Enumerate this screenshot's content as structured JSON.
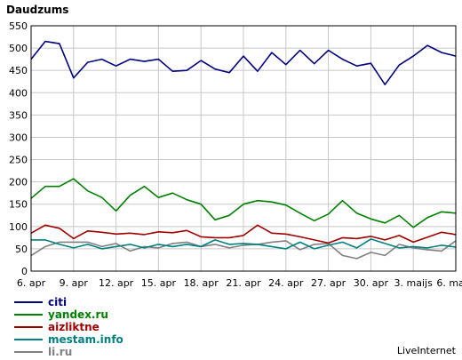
{
  "chart_data": {
    "type": "line",
    "title": "Daudzums",
    "credit": "LiveInternet",
    "ylim": [
      0,
      550
    ],
    "yticks": [
      0,
      50,
      100,
      150,
      200,
      250,
      300,
      350,
      400,
      450,
      500,
      550
    ],
    "grid": true,
    "legend_position": "bottom-left",
    "x_tick_labels": [
      "6. apr",
      "9. apr",
      "12. apr",
      "15. apr",
      "18. apr",
      "21. apr",
      "24. apr",
      "27. apr",
      "30. apr",
      "3. maijs",
      "6. maijs"
    ],
    "x_tick_index": [
      0,
      3,
      6,
      9,
      12,
      15,
      18,
      21,
      24,
      27,
      30
    ],
    "series": [
      {
        "name": "citi",
        "color": "#000080",
        "values": [
          475,
          515,
          510,
          433,
          468,
          475,
          460,
          475,
          470,
          475,
          448,
          450,
          472,
          453,
          445,
          482,
          448,
          490,
          463,
          495,
          465,
          495,
          475,
          460,
          466,
          418,
          462,
          482,
          506,
          490,
          482
        ]
      },
      {
        "name": "yandex.ru",
        "color": "#008000",
        "values": [
          163,
          190,
          190,
          207,
          180,
          165,
          135,
          170,
          190,
          165,
          175,
          160,
          150,
          115,
          125,
          150,
          158,
          155,
          148,
          130,
          113,
          128,
          158,
          130,
          117,
          108,
          125,
          98,
          120,
          133,
          130
        ]
      },
      {
        "name": "aizliktne",
        "color": "#a00000",
        "values": [
          85,
          103,
          96,
          73,
          90,
          87,
          83,
          85,
          82,
          88,
          86,
          91,
          77,
          75,
          75,
          80,
          103,
          85,
          83,
          77,
          70,
          63,
          75,
          73,
          78,
          70,
          80,
          65,
          76,
          87,
          82
        ]
      },
      {
        "name": "mestam.info",
        "color": "#008080",
        "values": [
          70,
          70,
          60,
          52,
          60,
          50,
          55,
          60,
          52,
          60,
          55,
          60,
          55,
          70,
          60,
          62,
          60,
          55,
          50,
          65,
          50,
          58,
          65,
          52,
          72,
          62,
          52,
          55,
          52,
          58,
          54
        ]
      },
      {
        "name": "li.ru",
        "color": "#808080",
        "values": [
          35,
          55,
          65,
          65,
          65,
          55,
          62,
          45,
          55,
          52,
          62,
          65,
          55,
          60,
          52,
          58,
          60,
          65,
          68,
          48,
          60,
          62,
          35,
          28,
          42,
          35,
          60,
          52,
          48,
          45,
          68
        ]
      }
    ]
  }
}
